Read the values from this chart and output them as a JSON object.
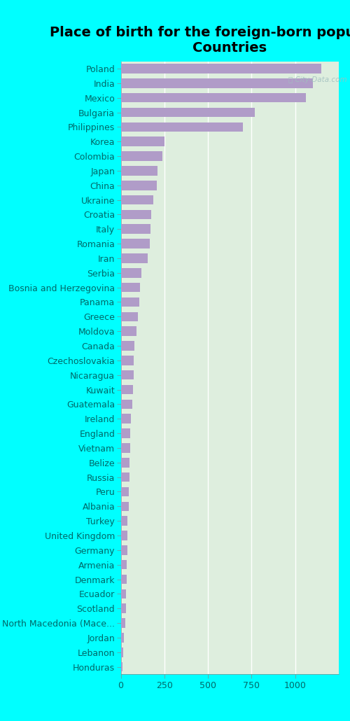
{
  "title": "Place of birth for the foreign-born population -\nCountries",
  "categories": [
    "Poland",
    "India",
    "Mexico",
    "Bulgaria",
    "Philippines",
    "Korea",
    "Colombia",
    "Japan",
    "China",
    "Ukraine",
    "Croatia",
    "Italy",
    "Romania",
    "Iran",
    "Serbia",
    "Bosnia and Herzegovina",
    "Panama",
    "Greece",
    "Moldova",
    "Canada",
    "Czechoslovakia",
    "Nicaragua",
    "Kuwait",
    "Guatemala",
    "Ireland",
    "England",
    "Vietnam",
    "Belize",
    "Russia",
    "Peru",
    "Albania",
    "Turkey",
    "United Kingdom",
    "Germany",
    "Armenia",
    "Denmark",
    "Ecuador",
    "Scotland",
    "North Macedonia (Mace...",
    "Jordan",
    "Lebanon",
    "Honduras"
  ],
  "values": [
    1150,
    1100,
    1060,
    770,
    700,
    250,
    240,
    210,
    205,
    185,
    175,
    170,
    165,
    155,
    120,
    110,
    105,
    100,
    90,
    80,
    75,
    75,
    70,
    65,
    60,
    55,
    55,
    50,
    50,
    45,
    45,
    40,
    40,
    40,
    35,
    35,
    30,
    30,
    25,
    20,
    15,
    12
  ],
  "bar_color": "#b09cc8",
  "background_color": "#00ffff",
  "plot_bg_color": "#deeede",
  "title_color": "#000000",
  "label_color": "#006868",
  "tick_color": "#006868",
  "xlim": [
    0,
    1250
  ],
  "xticks": [
    0,
    250,
    500,
    750,
    1000
  ],
  "title_fontsize": 14,
  "label_fontsize": 9,
  "tick_fontsize": 9,
  "watermark_color": "#a0bfbf"
}
